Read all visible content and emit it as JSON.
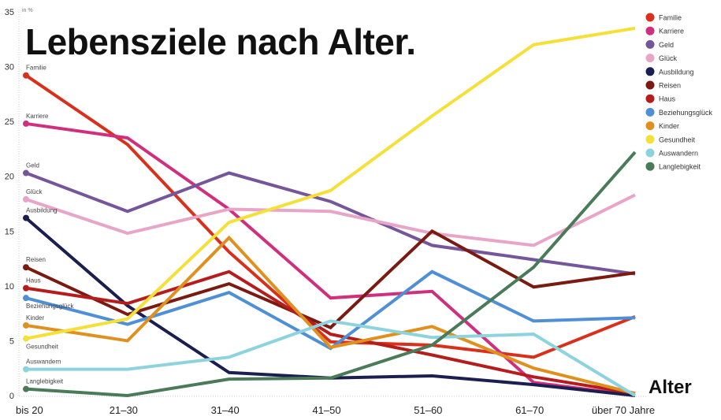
{
  "chart_data": {
    "type": "line",
    "title": "Lebensziele nach Alter.",
    "unit_label": "in %",
    "xlabel": "Alter",
    "categories": [
      "bis 20",
      "21–30",
      "31–40",
      "41–50",
      "51–60",
      "61–70",
      "über 70 Jahre"
    ],
    "ylim": [
      0,
      35
    ],
    "yticks": [
      0,
      5,
      10,
      15,
      20,
      25,
      30,
      35
    ],
    "grid": false,
    "legend": "right",
    "series": [
      {
        "name": "Familie",
        "color": "#d9301c",
        "values": [
          29.2,
          22.9,
          13.1,
          4.9,
          4.6,
          3.5,
          7.2
        ]
      },
      {
        "name": "Karriere",
        "color": "#d02f7e",
        "values": [
          24.8,
          23.5,
          17.0,
          8.9,
          9.5,
          1.2,
          0
        ]
      },
      {
        "name": "Geld",
        "color": "#76569a",
        "values": [
          20.3,
          16.8,
          20.3,
          17.7,
          13.7,
          12.4,
          11.1
        ]
      },
      {
        "name": "Glück",
        "color": "#e8a5c8",
        "values": [
          17.9,
          14.8,
          17.0,
          16.8,
          14.8,
          13.7,
          18.3
        ]
      },
      {
        "name": "Ausbildung",
        "color": "#1a1f4f",
        "values": [
          16.2,
          8.2,
          2.1,
          1.6,
          1.8,
          1.0,
          0
        ]
      },
      {
        "name": "Reisen",
        "color": "#7a1a10",
        "values": [
          11.7,
          7.4,
          10.2,
          6.2,
          15.0,
          9.9,
          11.2
        ]
      },
      {
        "name": "Haus",
        "color": "#b51c1c",
        "values": [
          9.8,
          8.4,
          11.3,
          5.6,
          3.7,
          1.7,
          0.2
        ]
      },
      {
        "name": "Beziehungsglück",
        "color": "#4f8fd6",
        "values": [
          8.9,
          6.5,
          9.4,
          4.3,
          11.3,
          6.8,
          7.1
        ]
      },
      {
        "name": "Kinder",
        "color": "#e0901e",
        "values": [
          6.4,
          5.0,
          14.4,
          4.4,
          6.3,
          2.5,
          0.2
        ]
      },
      {
        "name": "Gesundheit",
        "color": "#f5e03a",
        "values": [
          5.2,
          7.0,
          15.8,
          18.7,
          25.5,
          32.0,
          33.5
        ]
      },
      {
        "name": "Auswandern",
        "color": "#8dd3dd",
        "values": [
          2.4,
          2.4,
          3.5,
          6.8,
          5.3,
          5.6,
          0
        ]
      },
      {
        "name": "Langlebigkeit",
        "color": "#4a7b58",
        "values": [
          0.6,
          0.0,
          1.5,
          1.6,
          4.6,
          11.7,
          22.2
        ]
      }
    ]
  }
}
